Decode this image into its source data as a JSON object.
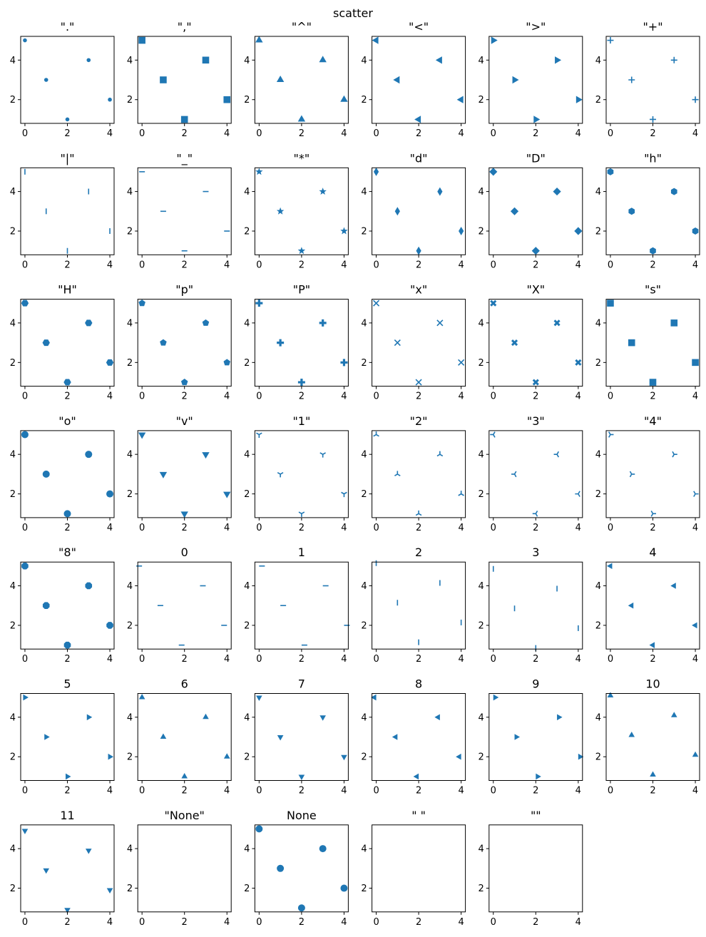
{
  "figure": {
    "title": "scatter"
  },
  "style": {
    "marker_color": "#1f77b4",
    "axes_color": "#000000"
  },
  "chart_data": {
    "type": "scatter",
    "x": [
      0,
      1,
      2,
      3,
      4
    ],
    "y": [
      5,
      3,
      1,
      4,
      2
    ],
    "xticks": [
      "0",
      "2",
      "4"
    ],
    "yticks": [
      "2",
      "4"
    ],
    "xlim": [
      -0.2,
      4.2
    ],
    "ylim": [
      0.8,
      5.2
    ],
    "grid": false,
    "panels": [
      {
        "title": "\".\"",
        "marker": "point"
      },
      {
        "title": "\",\"",
        "marker": "square"
      },
      {
        "title": "\"^\"",
        "marker": "triangle-up"
      },
      {
        "title": "\"<\"",
        "marker": "triangle-left"
      },
      {
        "title": "\">\"",
        "marker": "triangle-right"
      },
      {
        "title": "\"+\"",
        "marker": "plus"
      },
      {
        "title": "\"|\"",
        "marker": "vline"
      },
      {
        "title": "\"_\"",
        "marker": "hline"
      },
      {
        "title": "\"*\"",
        "marker": "star"
      },
      {
        "title": "\"d\"",
        "marker": "thin-diamond"
      },
      {
        "title": "\"D\"",
        "marker": "diamond"
      },
      {
        "title": "\"h\"",
        "marker": "hexagon1"
      },
      {
        "title": "\"H\"",
        "marker": "hexagon2"
      },
      {
        "title": "\"p\"",
        "marker": "pentagon"
      },
      {
        "title": "\"P\"",
        "marker": "plus-filled"
      },
      {
        "title": "\"x\"",
        "marker": "x"
      },
      {
        "title": "\"X\"",
        "marker": "x-filled"
      },
      {
        "title": "\"s\"",
        "marker": "square"
      },
      {
        "title": "\"o\"",
        "marker": "circle"
      },
      {
        "title": "\"v\"",
        "marker": "triangle-down"
      },
      {
        "title": "\"1\"",
        "marker": "tri-down"
      },
      {
        "title": "\"2\"",
        "marker": "tri-up"
      },
      {
        "title": "\"3\"",
        "marker": "tri-left"
      },
      {
        "title": "\"4\"",
        "marker": "tri-right"
      },
      {
        "title": "\"8\"",
        "marker": "octagon"
      },
      {
        "title": "0",
        "marker": "tickleft"
      },
      {
        "title": "1",
        "marker": "tickright"
      },
      {
        "title": "2",
        "marker": "tickup"
      },
      {
        "title": "3",
        "marker": "tickdown"
      },
      {
        "title": "4",
        "marker": "caretleft"
      },
      {
        "title": "5",
        "marker": "caretright"
      },
      {
        "title": "6",
        "marker": "caretup"
      },
      {
        "title": "7",
        "marker": "caretdown"
      },
      {
        "title": "8",
        "marker": "caretleftbase"
      },
      {
        "title": "9",
        "marker": "caretrightbase"
      },
      {
        "title": "10",
        "marker": "caretupbase"
      },
      {
        "title": "11",
        "marker": "caretdownbase"
      },
      {
        "title": "\"None\"",
        "marker": "none"
      },
      {
        "title": "None",
        "marker": "circle"
      },
      {
        "title": "\" \"",
        "marker": "none"
      },
      {
        "title": "\"\"",
        "marker": "none"
      }
    ]
  }
}
